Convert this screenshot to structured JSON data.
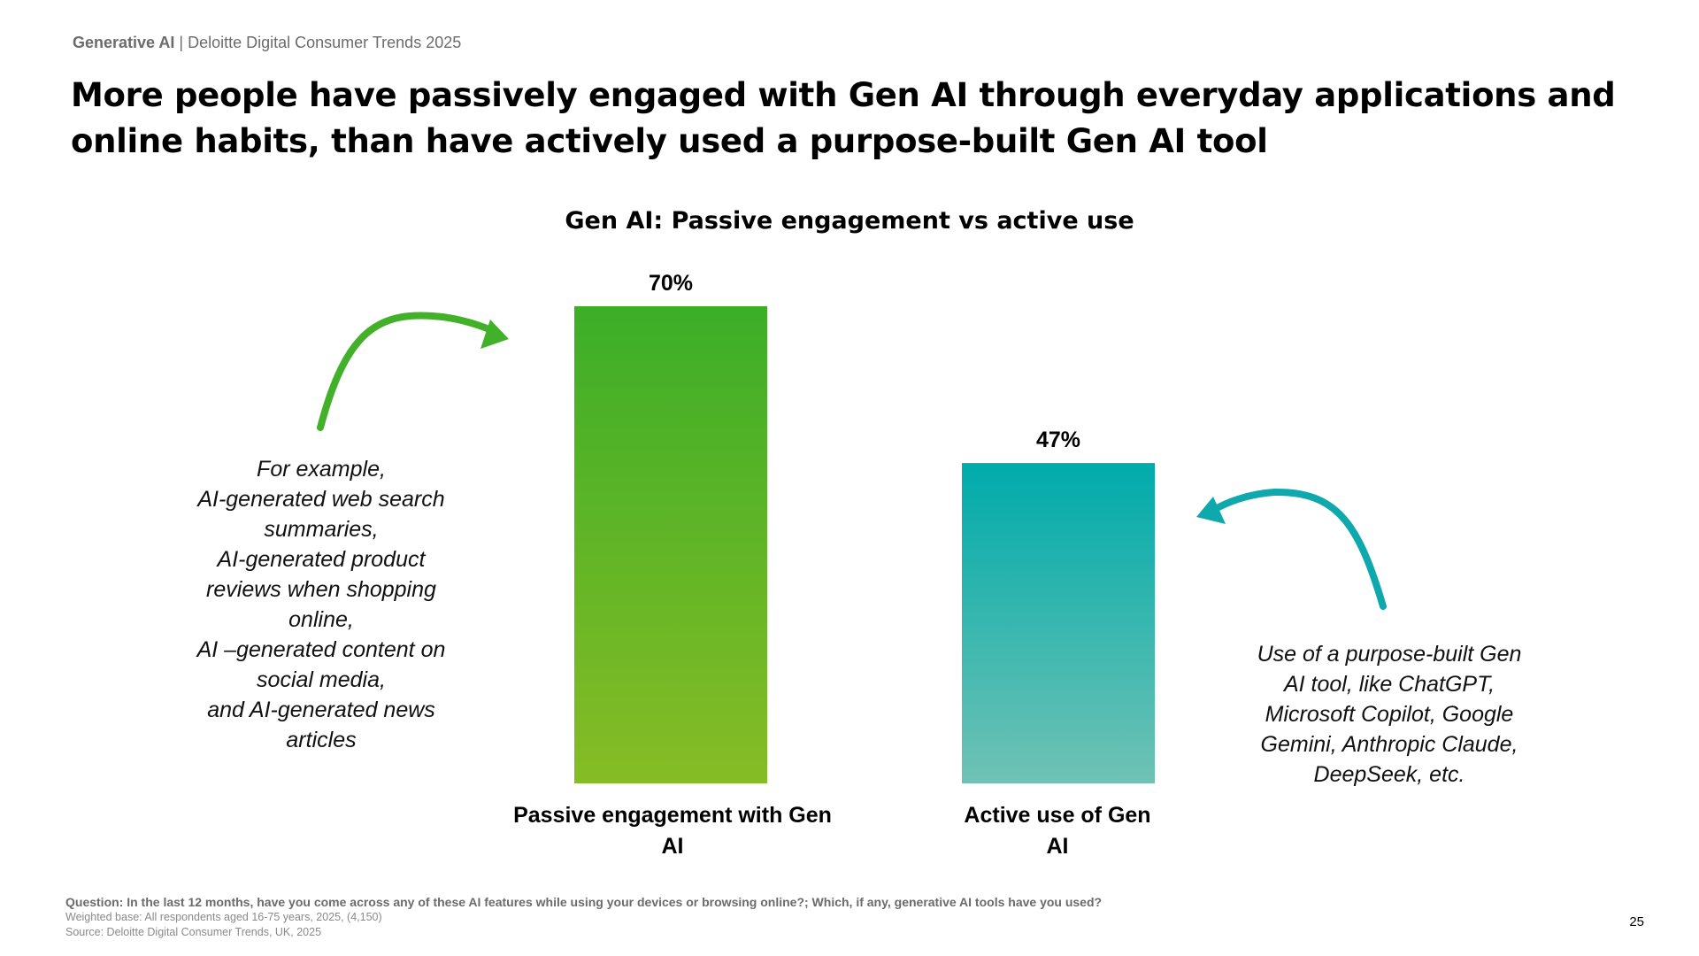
{
  "header": {
    "section": "Generative AI",
    "separator": " | ",
    "source_label": "Deloitte Digital Consumer Trends 2025"
  },
  "headline": "More people have passively engaged with Gen AI through everyday applications and online habits, than have actively used a purpose-built Gen AI tool",
  "chart_data": {
    "type": "bar",
    "title": "Gen AI: Passive engagement vs active use",
    "categories": [
      "Passive engagement with Gen AI",
      "Active use of Gen AI"
    ],
    "values": [
      70,
      47
    ],
    "data_labels": [
      "70%",
      "47%"
    ],
    "ylim": [
      0,
      100
    ],
    "grid": false,
    "colors": [
      {
        "top": "#3cae28",
        "bottom": "#86bc25"
      },
      {
        "top": "#00abab",
        "bottom": "#6fc2b4"
      }
    ]
  },
  "annotations": {
    "passive": {
      "lines": [
        "For example,",
        "AI-generated web search",
        "summaries,",
        "AI-generated product",
        "reviews when shopping",
        "online,",
        "AI –generated content on",
        "social media,",
        "and AI-generated news",
        "articles"
      ],
      "arrow_color": "#43b02a"
    },
    "active": {
      "lines": [
        "Use of a purpose-built Gen",
        "AI tool, like ChatGPT,",
        "Microsoft Copilot, Google",
        "Gemini, Anthropic Claude,",
        "DeepSeek, etc."
      ],
      "arrow_color": "#0fa9ad"
    }
  },
  "footer": {
    "question": "Question: In the last 12 months, have you come across any of these AI features while using your devices or browsing online?; Which, if any, generative AI tools have you used?",
    "base": "Weighted base: All respondents aged 16-75 years, 2025, (4,150)",
    "source": "Source: Deloitte Digital Consumer Trends, UK, 2025"
  },
  "page_number": "25"
}
